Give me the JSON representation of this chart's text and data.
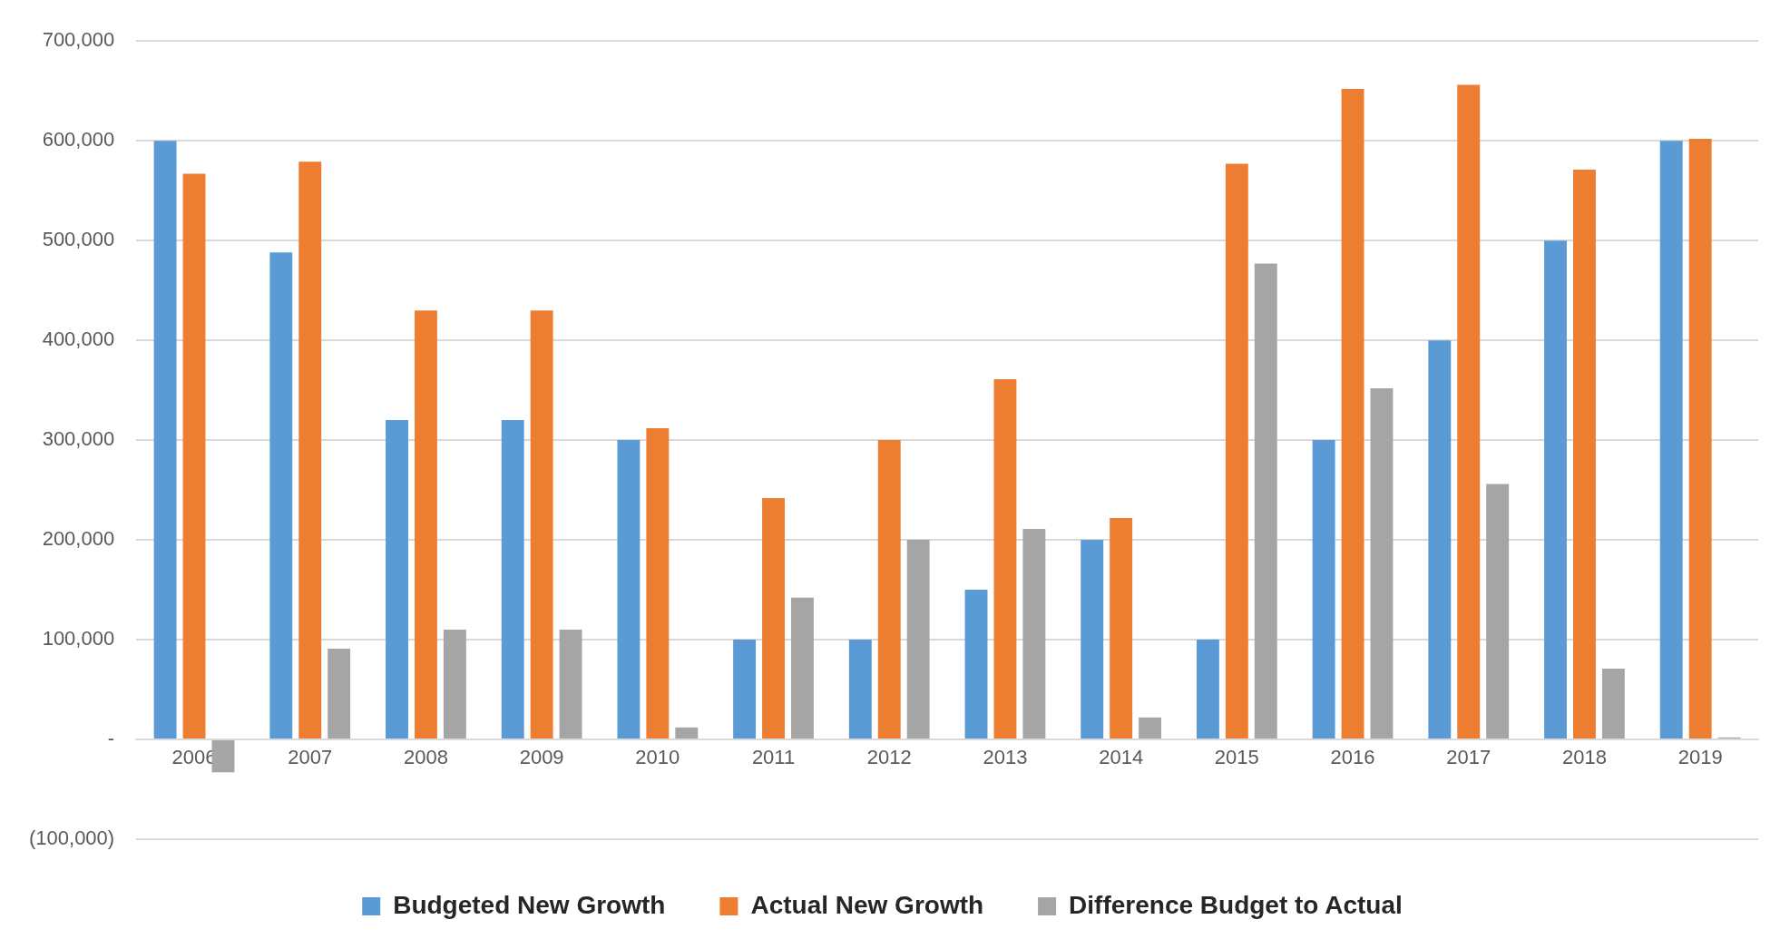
{
  "chart_data": {
    "type": "bar",
    "categories": [
      "2006",
      "2007",
      "2008",
      "2009",
      "2010",
      "2011",
      "2012",
      "2013",
      "2014",
      "2015",
      "2016",
      "2017",
      "2018",
      "2019"
    ],
    "series": [
      {
        "name": "Budgeted New Growth",
        "color": "#5b9bd5",
        "values": [
          600000,
          488000,
          320000,
          320000,
          300000,
          100000,
          100000,
          150000,
          200000,
          100000,
          300000,
          400000,
          500000,
          600000
        ]
      },
      {
        "name": "Actual New Growth",
        "color": "#ed7d31",
        "values": [
          567000,
          579000,
          430000,
          430000,
          312000,
          242000,
          300000,
          361000,
          222000,
          577000,
          652000,
          656000,
          571000,
          602000
        ]
      },
      {
        "name": "Difference Budget to Actual",
        "color": "#a5a5a5",
        "values": [
          -33000,
          91000,
          110000,
          110000,
          12000,
          142000,
          200000,
          211000,
          22000,
          477000,
          352000,
          256000,
          71000,
          2000
        ]
      }
    ],
    "ylim": [
      -100000,
      700000
    ],
    "yticks": [
      {
        "value": -100000,
        "label": "(100,000)"
      },
      {
        "value": 0,
        "label": "-"
      },
      {
        "value": 100000,
        "label": "100,000"
      },
      {
        "value": 200000,
        "label": "200,000"
      },
      {
        "value": 300000,
        "label": "300,000"
      },
      {
        "value": 400000,
        "label": "400,000"
      },
      {
        "value": 500000,
        "label": "500,000"
      },
      {
        "value": 600000,
        "label": "600,000"
      },
      {
        "value": 700000,
        "label": "700,000"
      }
    ],
    "grid": "y",
    "legend": "bottom"
  }
}
